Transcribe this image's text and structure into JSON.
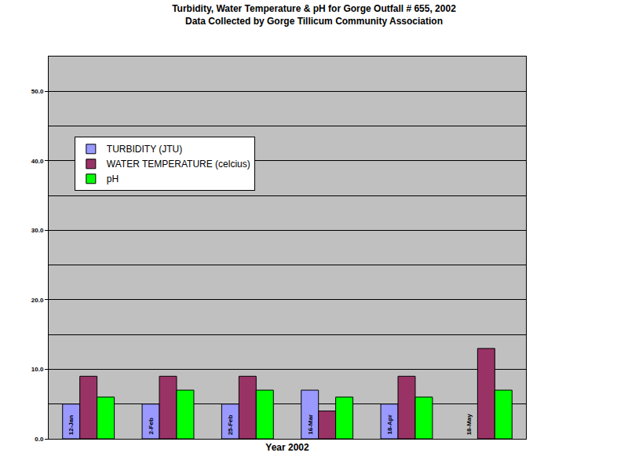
{
  "chart_data": {
    "type": "bar",
    "title": "Turbidity, Water Temperature & pH for Gorge Outfall # 655, 2002",
    "subtitle": "Data Collected by Gorge Tillicum Community Association",
    "x_label": "Year 2002",
    "categories": [
      "12-Jan",
      "2-Feb",
      "25-Feb",
      "16-Mar",
      "18-Apr",
      "18-May"
    ],
    "series": [
      {
        "name": "TURBIDITY (JTU)",
        "color": "#9999ff",
        "values": [
          5,
          5,
          5,
          7,
          5,
          null
        ]
      },
      {
        "name": "WATER TEMPERATURE (celcius)",
        "color": "#993366",
        "values": [
          9,
          9,
          9,
          4,
          9,
          13
        ]
      },
      {
        "name": "pH",
        "color": "#00ff00",
        "values": [
          6,
          7,
          7,
          6,
          6,
          7
        ]
      }
    ],
    "ylim": [
      0,
      55
    ],
    "yticks": [
      {
        "value": 0,
        "label": "0.0"
      },
      {
        "value": 10,
        "label": "10.0"
      },
      {
        "value": 20,
        "label": "20.0"
      },
      {
        "value": 30,
        "label": "30.0"
      },
      {
        "value": 40,
        "label": "40.0"
      },
      {
        "value": 50,
        "label": "50.0"
      }
    ],
    "grid": true,
    "legend": "upper left"
  }
}
